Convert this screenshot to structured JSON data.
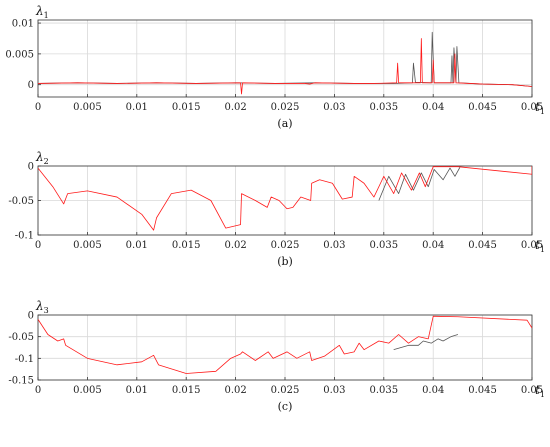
{
  "chart_data": [
    {
      "type": "line",
      "caption": "(a)",
      "ylabel_sym": "λ",
      "ylabel_sub": "1",
      "xlabel_sym": "t",
      "xlabel_sub": "1",
      "xlim": [
        0,
        0.05
      ],
      "ylim": [
        -0.002,
        0.0105
      ],
      "xticks": [
        "0",
        "0.005",
        "0.01",
        "0.015",
        "0.02",
        "0.025",
        "0.03",
        "0.035",
        "0.04",
        "0.045",
        "0.05"
      ],
      "yticks": [
        {
          "v": 0,
          "label": "0"
        },
        {
          "v": 0.005,
          "label": "0.005"
        },
        {
          "v": 0.01,
          "label": "0.01"
        }
      ],
      "grid": true,
      "series": [
        {
          "color": "#555555",
          "points": [
            [
              0,
              0.0002
            ],
            [
              0.004,
              0.0003
            ],
            [
              0.008,
              0.0002
            ],
            [
              0.012,
              0.0003
            ],
            [
              0.016,
              0.0002
            ],
            [
              0.02,
              0.0003
            ],
            [
              0.024,
              0.0002
            ],
            [
              0.028,
              0.0003
            ],
            [
              0.032,
              0.0002
            ],
            [
              0.036,
              0.0002
            ],
            [
              0.0379,
              0.0003
            ],
            [
              0.038,
              0.0035
            ],
            [
              0.0382,
              0.0004
            ],
            [
              0.0398,
              0.0003
            ],
            [
              0.0399,
              0.0085
            ],
            [
              0.0401,
              0.0003
            ],
            [
              0.0418,
              0.0003
            ],
            [
              0.0419,
              0.0047
            ],
            [
              0.042,
              0.0003
            ],
            [
              0.0421,
              0.006
            ],
            [
              0.0423,
              0.0003
            ],
            [
              0.0424,
              0.0062
            ],
            [
              0.0426,
              0.0003
            ],
            [
              0.045,
              0.0001
            ],
            [
              0.048,
              0.0
            ],
            [
              0.05,
              -0.0003
            ]
          ]
        },
        {
          "color": "#ff1a1a",
          "points": [
            [
              0,
              0.0002
            ],
            [
              0.004,
              0.0003
            ],
            [
              0.008,
              0.0002
            ],
            [
              0.012,
              0.0003
            ],
            [
              0.016,
              0.0002
            ],
            [
              0.0205,
              0.0003
            ],
            [
              0.0206,
              -0.0015
            ],
            [
              0.0207,
              0.0003
            ],
            [
              0.024,
              0.0002
            ],
            [
              0.027,
              0.0002
            ],
            [
              0.0275,
              0.0001
            ],
            [
              0.028,
              0.0003
            ],
            [
              0.032,
              0.0002
            ],
            [
              0.034,
              0.0002
            ],
            [
              0.0363,
              0.0003
            ],
            [
              0.0364,
              0.0035
            ],
            [
              0.0365,
              0.0003
            ],
            [
              0.0387,
              0.0003
            ],
            [
              0.0388,
              0.0075
            ],
            [
              0.0389,
              0.0003
            ],
            [
              0.0399,
              0.0003
            ],
            [
              0.04,
              0.004
            ],
            [
              0.0401,
              0.0003
            ],
            [
              0.0421,
              0.0003
            ],
            [
              0.0422,
              0.005
            ],
            [
              0.0423,
              0.0003
            ],
            [
              0.045,
              0.0001
            ],
            [
              0.048,
              0.0
            ],
            [
              0.05,
              -0.0003
            ]
          ]
        }
      ]
    },
    {
      "type": "line",
      "caption": "(b)",
      "ylabel_sym": "λ",
      "ylabel_sub": "2",
      "xlabel_sym": "t",
      "xlabel_sub": "1",
      "xlim": [
        0,
        0.05
      ],
      "ylim": [
        -0.1,
        0
      ],
      "xticks": [
        "0",
        "0.005",
        "0.01",
        "0.015",
        "0.02",
        "0.025",
        "0.03",
        "0.035",
        "0.04",
        "0.045",
        "0.05"
      ],
      "yticks": [
        {
          "v": 0,
          "label": "0"
        },
        {
          "v": -0.05,
          "label": "-0.05"
        },
        {
          "v": -0.1,
          "label": "-0.1"
        }
      ],
      "grid": true,
      "series": [
        {
          "color": "#555555",
          "points": [
            [
              0.0345,
              -0.05
            ],
            [
              0.0355,
              -0.015
            ],
            [
              0.0365,
              -0.04
            ],
            [
              0.0372,
              -0.012
            ],
            [
              0.038,
              -0.035
            ],
            [
              0.0388,
              -0.01
            ],
            [
              0.0395,
              -0.03
            ],
            [
              0.0401,
              -0.005
            ],
            [
              0.041,
              -0.02
            ],
            [
              0.0417,
              -0.003
            ],
            [
              0.0422,
              -0.015
            ],
            [
              0.0427,
              -0.002
            ]
          ]
        },
        {
          "color": "#ff1a1a",
          "points": [
            [
              0,
              -0.003
            ],
            [
              0.0015,
              -0.03
            ],
            [
              0.0026,
              -0.055
            ],
            [
              0.003,
              -0.04
            ],
            [
              0.005,
              -0.036
            ],
            [
              0.008,
              -0.045
            ],
            [
              0.0105,
              -0.07
            ],
            [
              0.0117,
              -0.093
            ],
            [
              0.012,
              -0.075
            ],
            [
              0.0135,
              -0.04
            ],
            [
              0.0155,
              -0.035
            ],
            [
              0.0175,
              -0.05
            ],
            [
              0.019,
              -0.09
            ],
            [
              0.0205,
              -0.085
            ],
            [
              0.0206,
              -0.04
            ],
            [
              0.022,
              -0.05
            ],
            [
              0.0232,
              -0.06
            ],
            [
              0.0236,
              -0.045
            ],
            [
              0.0244,
              -0.05
            ],
            [
              0.0252,
              -0.062
            ],
            [
              0.0258,
              -0.06
            ],
            [
              0.0266,
              -0.045
            ],
            [
              0.0276,
              -0.05
            ],
            [
              0.0277,
              -0.025
            ],
            [
              0.0285,
              -0.02
            ],
            [
              0.0298,
              -0.025
            ],
            [
              0.0308,
              -0.048
            ],
            [
              0.0318,
              -0.045
            ],
            [
              0.032,
              -0.015
            ],
            [
              0.033,
              -0.025
            ],
            [
              0.034,
              -0.045
            ],
            [
              0.035,
              -0.015
            ],
            [
              0.036,
              -0.04
            ],
            [
              0.0368,
              -0.01
            ],
            [
              0.0378,
              -0.035
            ],
            [
              0.0386,
              -0.01
            ],
            [
              0.0392,
              -0.03
            ],
            [
              0.04,
              -0.001
            ],
            [
              0.0402,
              -0.001
            ],
            [
              0.0425,
              -0.001
            ],
            [
              0.05,
              -0.012
            ],
            [
              0.05,
              0
            ]
          ]
        }
      ]
    },
    {
      "type": "line",
      "caption": "(c)",
      "ylabel_sym": "λ",
      "ylabel_sub": "3",
      "xlabel_sym": "t",
      "xlabel_sub": "1",
      "xlim": [
        0,
        0.05
      ],
      "ylim": [
        -0.15,
        0
      ],
      "xticks": [
        "0",
        "0.005",
        "0.01",
        "0.015",
        "0.02",
        "0.025",
        "0.03",
        "0.035",
        "0.04",
        "0.045",
        "0.05"
      ],
      "yticks": [
        {
          "v": 0,
          "label": "0"
        },
        {
          "v": -0.05,
          "label": "-0.05"
        },
        {
          "v": -0.1,
          "label": "-0.1"
        },
        {
          "v": -0.15,
          "label": "-0.15"
        }
      ],
      "grid": true,
      "series": [
        {
          "color": "#555555",
          "points": [
            [
              0.036,
              -0.08
            ],
            [
              0.0375,
              -0.07
            ],
            [
              0.0385,
              -0.07
            ],
            [
              0.039,
              -0.06
            ],
            [
              0.0398,
              -0.065
            ],
            [
              0.0405,
              -0.055
            ],
            [
              0.041,
              -0.06
            ],
            [
              0.0418,
              -0.05
            ],
            [
              0.0425,
              -0.045
            ]
          ]
        },
        {
          "color": "#ff1a1a",
          "points": [
            [
              0,
              -0.01
            ],
            [
              0.001,
              -0.045
            ],
            [
              0.002,
              -0.06
            ],
            [
              0.0026,
              -0.055
            ],
            [
              0.0028,
              -0.07
            ],
            [
              0.005,
              -0.1
            ],
            [
              0.008,
              -0.115
            ],
            [
              0.0105,
              -0.108
            ],
            [
              0.0117,
              -0.093
            ],
            [
              0.0122,
              -0.115
            ],
            [
              0.015,
              -0.135
            ],
            [
              0.018,
              -0.13
            ],
            [
              0.0195,
              -0.1
            ],
            [
              0.0205,
              -0.09
            ],
            [
              0.0207,
              -0.085
            ],
            [
              0.022,
              -0.105
            ],
            [
              0.0233,
              -0.085
            ],
            [
              0.0238,
              -0.1
            ],
            [
              0.0252,
              -0.085
            ],
            [
              0.0262,
              -0.1
            ],
            [
              0.0275,
              -0.085
            ],
            [
              0.0277,
              -0.105
            ],
            [
              0.029,
              -0.095
            ],
            [
              0.0305,
              -0.07
            ],
            [
              0.031,
              -0.09
            ],
            [
              0.032,
              -0.085
            ],
            [
              0.0325,
              -0.065
            ],
            [
              0.033,
              -0.08
            ],
            [
              0.0345,
              -0.06
            ],
            [
              0.0355,
              -0.065
            ],
            [
              0.0365,
              -0.045
            ],
            [
              0.0375,
              -0.065
            ],
            [
              0.0385,
              -0.05
            ],
            [
              0.0395,
              -0.055
            ],
            [
              0.04,
              -0.003
            ],
            [
              0.0402,
              -0.003
            ],
            [
              0.0425,
              -0.004
            ],
            [
              0.0495,
              -0.012
            ],
            [
              0.05,
              -0.03
            ]
          ]
        }
      ]
    }
  ]
}
